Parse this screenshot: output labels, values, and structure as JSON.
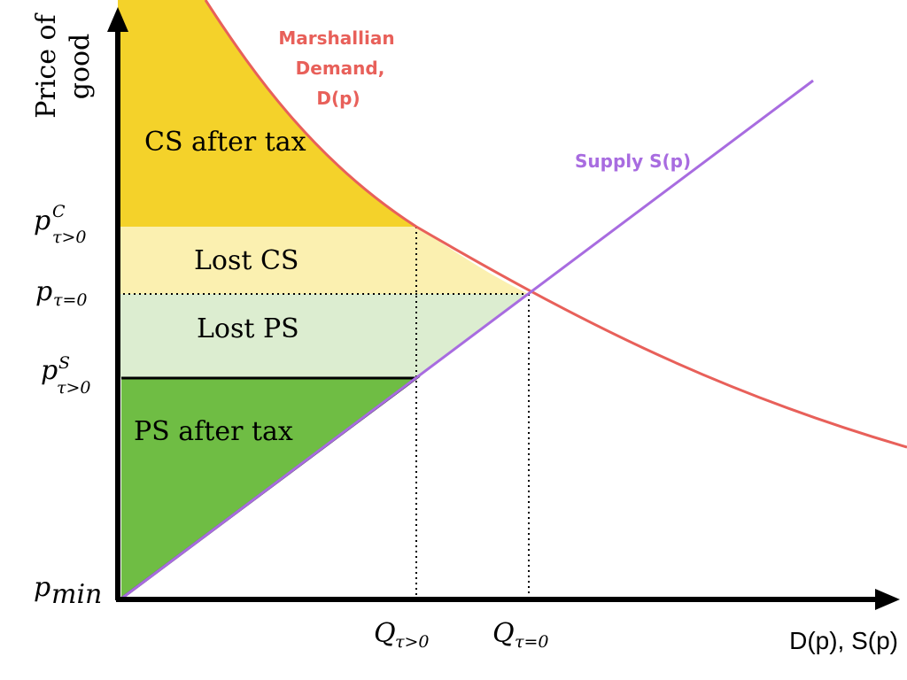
{
  "diagram": {
    "y_axis_label_line1": "Price of",
    "y_axis_label_line2": "good",
    "x_axis_label": "D(p), S(p)",
    "demand_label_line1": "Marshallian",
    "demand_label_line2": "Demand,",
    "demand_label_line3": "D(p)",
    "supply_label": "Supply S(p)",
    "regions": {
      "cs_after_tax": "CS after tax",
      "lost_cs": "Lost CS",
      "lost_ps": "Lost PS",
      "ps_after_tax": "PS after tax"
    },
    "y_ticks": {
      "p_consumer": {
        "base": "p",
        "sup": "C",
        "sub": "τ>0"
      },
      "p_no_tax": {
        "base": "p",
        "sub": "τ=0"
      },
      "p_supplier": {
        "base": "p",
        "sup": "S",
        "sub": "τ>0"
      },
      "p_min": {
        "base": "p",
        "sub": "min"
      }
    },
    "x_ticks": {
      "q_tax": {
        "base": "Q",
        "sub": "τ>0"
      },
      "q_no_tax": {
        "base": "Q",
        "sub": "τ=0"
      }
    },
    "colors": {
      "cs_after_tax": "#f4d22a",
      "lost_cs": "#fbf0b0",
      "lost_ps": "#dcedd0",
      "ps_after_tax": "#6fbd44",
      "demand": "#e8605a",
      "supply": "#a86ce0",
      "axis": "#000000"
    }
  }
}
